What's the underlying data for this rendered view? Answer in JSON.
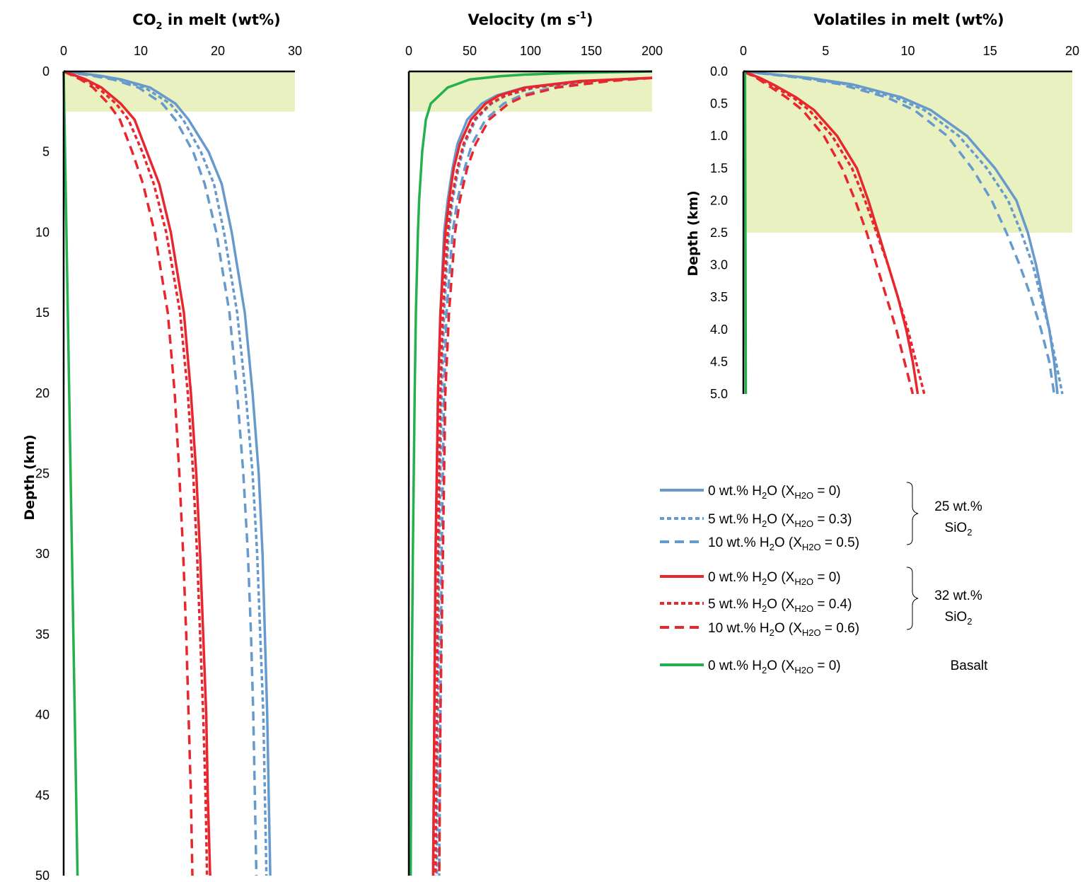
{
  "chart_data": [
    {
      "type": "line",
      "title_main": "CO",
      "title_sub": "2",
      "title_rest": " in melt (wt%)",
      "xlabel": "",
      "ylabel": "Depth (km)",
      "xlim": [
        0,
        30
      ],
      "ylim": [
        0,
        50
      ],
      "x_ticks": [
        "0",
        "10",
        "20",
        "30"
      ],
      "y_ticks": [
        "0",
        "5",
        "10",
        "15",
        "20",
        "25",
        "30",
        "35",
        "40",
        "45",
        "50"
      ],
      "shaded_band_depth": [
        0,
        2.5
      ],
      "series": [
        {
          "id": "s25_0",
          "y": [
            0,
            0.25,
            0.5,
            1,
            2,
            3,
            5,
            7,
            10,
            15,
            20,
            25,
            30,
            35,
            40,
            45,
            50
          ],
          "x": [
            0,
            4.5,
            7.5,
            11.2,
            14.5,
            16.2,
            18.8,
            20.5,
            21.8,
            23.5,
            24.5,
            25.3,
            25.8,
            26.1,
            26.4,
            26.6,
            26.8
          ]
        },
        {
          "id": "s25_5",
          "y": [
            0,
            0.25,
            0.5,
            1,
            2,
            3,
            5,
            7,
            10,
            15,
            20,
            25,
            30,
            35,
            40,
            45,
            50
          ],
          "x": [
            0,
            4,
            7,
            10.5,
            13.8,
            15.5,
            17.8,
            19.5,
            20.8,
            22.5,
            23.6,
            24.5,
            25.1,
            25.5,
            25.9,
            26.1,
            26.3
          ]
        },
        {
          "id": "s25_10",
          "y": [
            0,
            0.25,
            0.5,
            1,
            2,
            3,
            5,
            7,
            10,
            15,
            20,
            25,
            30,
            35,
            40,
            45,
            50
          ],
          "x": [
            0,
            3.5,
            6.4,
            9.7,
            12.8,
            14.5,
            16.8,
            18.3,
            19.8,
            21.5,
            22.5,
            23.3,
            23.9,
            24.3,
            24.6,
            24.8,
            25.0
          ]
        },
        {
          "id": "s32_0",
          "y": [
            0,
            0.25,
            0.5,
            1,
            2,
            3,
            5,
            7,
            10,
            15,
            20,
            25,
            30,
            35,
            40,
            45,
            50
          ],
          "x": [
            0,
            1.5,
            2.9,
            4.9,
            7.4,
            9.2,
            10.8,
            12.4,
            13.9,
            15.6,
            16.5,
            17.2,
            17.7,
            18.1,
            18.5,
            18.7,
            19.0
          ]
        },
        {
          "id": "s32_5",
          "y": [
            0,
            0.25,
            0.5,
            1,
            2,
            3,
            5,
            7,
            10,
            15,
            20,
            25,
            30,
            35,
            40,
            45,
            50
          ],
          "x": [
            0,
            1.3,
            2.6,
            4.4,
            6.8,
            8.4,
            10.2,
            11.7,
            13.3,
            15.1,
            16.1,
            16.8,
            17.3,
            17.7,
            18.1,
            18.4,
            18.6
          ]
        },
        {
          "id": "s32_10",
          "y": [
            0,
            0.25,
            0.5,
            1,
            2,
            3,
            5,
            7,
            10,
            15,
            20,
            25,
            30,
            35,
            40,
            45,
            50
          ],
          "x": [
            0,
            1.1,
            2.2,
            3.8,
            5.8,
            7.3,
            8.9,
            10.3,
            11.8,
            13.5,
            14.4,
            15.0,
            15.5,
            15.9,
            16.2,
            16.5,
            16.7
          ]
        },
        {
          "id": "basalt",
          "y": [
            0,
            50
          ],
          "x": [
            0,
            1.8
          ]
        }
      ]
    },
    {
      "type": "line",
      "title_main": "Velocity (m s",
      "title_sup": "-1",
      "title_rest": ")",
      "xlabel": "",
      "ylabel": "",
      "xlim": [
        0,
        200
      ],
      "ylim": [
        0,
        50
      ],
      "x_ticks": [
        "0",
        "50",
        "100",
        "150",
        "200"
      ],
      "shaded_band_depth": [
        0,
        2.5
      ],
      "series": [
        {
          "id": "s25_0",
          "y": [
            0.4,
            0.6,
            1,
            1.5,
            2,
            3,
            4.5,
            6,
            8,
            10,
            15,
            20,
            30,
            40,
            50
          ],
          "x": [
            200,
            145,
            95,
            72,
            60,
            48,
            40,
            36,
            32,
            29,
            26,
            24,
            22,
            21,
            20
          ]
        },
        {
          "id": "s25_5",
          "y": [
            0.4,
            0.6,
            1,
            1.5,
            2,
            3,
            4.5,
            6,
            8,
            10,
            15,
            20,
            30,
            40,
            50
          ],
          "x": [
            200,
            150,
            104,
            80,
            68,
            55,
            46,
            41,
            36,
            33,
            29,
            27,
            25,
            24,
            23
          ]
        },
        {
          "id": "s25_10",
          "y": [
            0.4,
            0.6,
            1,
            1.5,
            2,
            3,
            4.5,
            6,
            8,
            10,
            15,
            20,
            30,
            40,
            50
          ],
          "x": [
            200,
            162,
            118,
            92,
            78,
            63,
            52,
            46,
            40,
            36,
            31,
            29,
            27,
            26,
            25
          ]
        },
        {
          "id": "s32_0",
          "y": [
            0.4,
            0.6,
            1,
            1.5,
            2,
            3,
            4.5,
            6,
            8,
            10,
            15,
            20,
            30,
            40,
            50
          ],
          "x": [
            200,
            140,
            96,
            74,
            63,
            51,
            42,
            37,
            33,
            30,
            26,
            24,
            22,
            21,
            20
          ]
        },
        {
          "id": "s32_5",
          "y": [
            0.4,
            0.6,
            1,
            1.5,
            2,
            3,
            4.5,
            6,
            8,
            10,
            15,
            20,
            30,
            40,
            50
          ],
          "x": [
            200,
            148,
            102,
            79,
            67,
            54,
            45,
            40,
            35,
            32,
            28,
            26,
            24,
            23,
            22
          ]
        },
        {
          "id": "s32_10",
          "y": [
            0.4,
            0.6,
            1,
            1.5,
            2,
            3,
            4.5,
            6,
            8,
            10,
            15,
            20,
            30,
            40,
            50
          ],
          "x": [
            200,
            165,
            122,
            96,
            82,
            66,
            55,
            48,
            42,
            38,
            33,
            30,
            28,
            26,
            25
          ]
        },
        {
          "id": "basalt",
          "y": [
            0,
            0.1,
            0.2,
            0.3,
            0.5,
            1,
            2,
            3,
            5,
            8,
            10,
            15,
            20,
            30,
            40,
            50
          ],
          "x": [
            200,
            130,
            95,
            75,
            50,
            32,
            18,
            14,
            11,
            8.5,
            7.5,
            5.8,
            4.8,
            3.3,
            2.2,
            1.5
          ]
        }
      ]
    },
    {
      "type": "line",
      "title_main": "Volatiles in melt (wt%)",
      "xlabel": "",
      "ylabel": "Depth (km)",
      "xlim": [
        0,
        20
      ],
      "ylim": [
        0,
        5
      ],
      "x_ticks": [
        "0",
        "5",
        "10",
        "15",
        "20"
      ],
      "y_ticks": [
        "0.0",
        "0.5",
        "1.0",
        "1.5",
        "2.0",
        "2.5",
        "3.0",
        "3.5",
        "4.0",
        "4.5",
        "5.0"
      ],
      "shaded_band_depth": [
        0,
        2.5
      ],
      "series": [
        {
          "id": "s25_0",
          "y": [
            0,
            0.1,
            0.2,
            0.4,
            0.6,
            1.0,
            1.5,
            2.0,
            2.5,
            3.0,
            3.5,
            4.0,
            4.5,
            5.0
          ],
          "x": [
            0,
            4.0,
            6.6,
            9.6,
            11.4,
            13.6,
            15.3,
            16.6,
            17.3,
            17.8,
            18.2,
            18.6,
            18.9,
            19.1
          ]
        },
        {
          "id": "s25_5",
          "y": [
            0,
            0.1,
            0.2,
            0.4,
            0.6,
            1.0,
            1.5,
            2.0,
            2.5,
            3.0,
            3.5,
            4.0,
            4.5,
            5.0
          ],
          "x": [
            0,
            3.8,
            6.3,
            9.2,
            11.0,
            13.1,
            14.8,
            16.1,
            16.9,
            17.6,
            18.1,
            18.6,
            19.0,
            19.4
          ]
        },
        {
          "id": "s25_10",
          "y": [
            0,
            0.1,
            0.2,
            0.4,
            0.6,
            1.0,
            1.5,
            2.0,
            2.5,
            3.0,
            3.5,
            4.0,
            4.5,
            5.0
          ],
          "x": [
            0,
            3.5,
            5.9,
            8.7,
            10.4,
            12.4,
            13.9,
            15.1,
            16.0,
            16.8,
            17.5,
            18.1,
            18.6,
            18.9
          ]
        },
        {
          "id": "s32_0",
          "y": [
            0,
            0.1,
            0.2,
            0.4,
            0.6,
            1.0,
            1.5,
            2.0,
            2.5,
            3.0,
            3.5,
            4.0,
            4.5,
            5.0
          ],
          "x": [
            0,
            1.0,
            1.8,
            3.2,
            4.3,
            5.7,
            6.9,
            7.6,
            8.2,
            8.8,
            9.4,
            9.9,
            10.3,
            10.6
          ]
        },
        {
          "id": "s32_5",
          "y": [
            0,
            0.1,
            0.2,
            0.4,
            0.6,
            1.0,
            1.5,
            2.0,
            2.5,
            3.0,
            3.5,
            4.0,
            4.5,
            5.0
          ],
          "x": [
            0,
            0.9,
            1.6,
            3.0,
            4.0,
            5.4,
            6.6,
            7.4,
            8.1,
            8.8,
            9.4,
            10.0,
            10.5,
            11.0
          ]
        },
        {
          "id": "s32_10",
          "y": [
            0,
            0.1,
            0.2,
            0.4,
            0.6,
            1.0,
            1.5,
            2.0,
            2.5,
            3.0,
            3.5,
            4.0,
            4.5,
            5.0
          ],
          "x": [
            0,
            0.8,
            1.4,
            2.6,
            3.6,
            4.9,
            6.0,
            6.8,
            7.5,
            8.1,
            8.7,
            9.3,
            9.8,
            10.3
          ]
        },
        {
          "id": "basalt",
          "y": [
            0,
            0.02,
            5.0
          ],
          "x": [
            0,
            0.1,
            0.15
          ]
        }
      ]
    }
  ],
  "series_styles": {
    "s25_0": {
      "color": "#6699cc",
      "dash": "none"
    },
    "s25_5": {
      "color": "#6699cc",
      "dash": "6 4"
    },
    "s25_10": {
      "color": "#6699cc",
      "dash": "13 8"
    },
    "s32_0": {
      "color": "#e8262d",
      "dash": "none"
    },
    "s32_5": {
      "color": "#e8262d",
      "dash": "6 4"
    },
    "s32_10": {
      "color": "#e8262d",
      "dash": "13 8"
    },
    "basalt": {
      "color": "#22b14c",
      "dash": "none"
    },
    "band_color": "#e8f1bf"
  },
  "legend": {
    "entries": [
      {
        "series": "s25_0",
        "main": "0 wt.% H",
        "sub1": "2",
        "mid": "O  (X",
        "sub2": "H2O",
        "end": " = 0)"
      },
      {
        "series": "s25_5",
        "main": "5 wt.% H",
        "sub1": "2",
        "mid": "O  (X",
        "sub2": "H2O",
        "end": " = 0.3)"
      },
      {
        "series": "s25_10",
        "main": "10 wt.% H",
        "sub1": "2",
        "mid": "O (X",
        "sub2": "H2O",
        "end": " = 0.5)"
      },
      {
        "series": "s32_0",
        "main": "0 wt.% H",
        "sub1": "2",
        "mid": "O  (X",
        "sub2": "H2O",
        "end": " = 0)"
      },
      {
        "series": "s32_5",
        "main": "5 wt.% H",
        "sub1": "2",
        "mid": "O  (X",
        "sub2": "H2O",
        "end": " = 0.4)"
      },
      {
        "series": "s32_10",
        "main": "10 wt.% H",
        "sub1": "2",
        "mid": "O (X",
        "sub2": "H2O",
        "end": " = 0.6)"
      },
      {
        "series": "basalt",
        "main": "0 wt.% H",
        "sub1": "2",
        "mid": "O (X",
        "sub2": "H2O",
        "end": " = 0)"
      }
    ],
    "group_25_line1": "25 wt.%",
    "group_25_line2": "SiO",
    "group_25_sub": "2",
    "group_32_line1": "32 wt.%",
    "group_32_line2": "SiO",
    "group_32_sub": "2",
    "group_basalt": "Basalt"
  }
}
